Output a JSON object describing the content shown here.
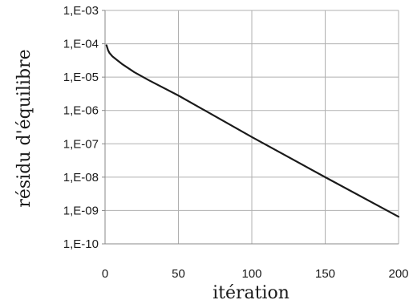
{
  "chart_data": {
    "type": "line",
    "xlabel": "itération",
    "ylabel": "résidu d'équilibre",
    "x_ticks": [
      "0",
      "50",
      "100",
      "150",
      "200"
    ],
    "y_ticks": [
      "1,E-03",
      "1,E-04",
      "1,E-05",
      "1,E-06",
      "1,E-07",
      "1,E-08",
      "1,E-09",
      "1,E-10"
    ],
    "xlim": [
      0,
      200
    ],
    "ylim": [
      1e-10,
      0.001
    ],
    "y_scale": "log",
    "grid": true,
    "colors": {
      "line": "#1a1a1a",
      "grid": "#b0b0b0",
      "axis": "#888888"
    },
    "series": [
      {
        "x": [
          1,
          2,
          3,
          5,
          8,
          12,
          20,
          30,
          50,
          100,
          150,
          200
        ],
        "values": [
          9e-05,
          6.5e-05,
          5.3e-05,
          4.2e-05,
          3.3e-05,
          2.4e-05,
          1.4e-05,
          8e-06,
          2.8e-06,
          1.6e-07,
          1e-08,
          6.5e-10
        ]
      }
    ]
  }
}
